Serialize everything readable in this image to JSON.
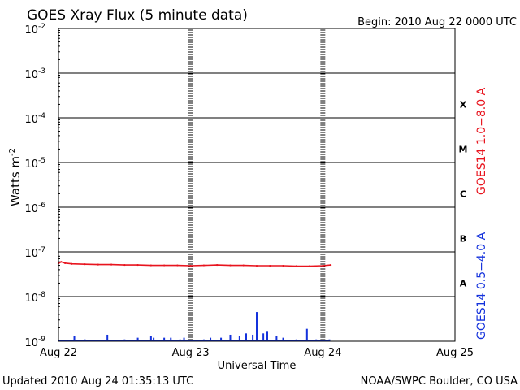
{
  "chart_data": {
    "type": "line",
    "title": "GOES Xray Flux (5 minute data)",
    "begin_label": "Begin:  2010 Aug 22 0000 UTC",
    "xlabel": "Universal Time",
    "ylabel": "Watts m",
    "ylabel_superscript": "-2",
    "y_scale": "log",
    "ylim": [
      1e-09,
      0.01
    ],
    "y_ticks": [
      {
        "base": "10",
        "exp": "-2",
        "value": 0.01
      },
      {
        "base": "10",
        "exp": "-3",
        "value": 0.001
      },
      {
        "base": "10",
        "exp": "-4",
        "value": 0.0001
      },
      {
        "base": "10",
        "exp": "-5",
        "value": 1e-05
      },
      {
        "base": "10",
        "exp": "-6",
        "value": 1e-06
      },
      {
        "base": "10",
        "exp": "-7",
        "value": 1e-07
      },
      {
        "base": "10",
        "exp": "-8",
        "value": 1e-08
      },
      {
        "base": "10",
        "exp": "-9",
        "value": 1e-09
      }
    ],
    "x_ticks": [
      {
        "label": "Aug 22",
        "day": 0
      },
      {
        "label": "Aug 23",
        "day": 1
      },
      {
        "label": "Aug 24",
        "day": 2
      },
      {
        "label": "Aug 25",
        "day": 3
      }
    ],
    "xlim_days": [
      0,
      3
    ],
    "flare_classes": [
      {
        "label": "X",
        "value": 0.0002
      },
      {
        "label": "M",
        "value": 2e-05
      },
      {
        "label": "C",
        "value": 2e-06
      },
      {
        "label": "B",
        "value": 2e-07
      },
      {
        "label": "A",
        "value": 2e-08
      }
    ],
    "grid": true,
    "series": [
      {
        "name": "GOES14 1.0−8.0 A",
        "color": "#e8141e",
        "x_days": [
          0.0,
          0.02,
          0.05,
          0.1,
          0.2,
          0.3,
          0.4,
          0.5,
          0.6,
          0.7,
          0.8,
          0.9,
          1.0,
          1.1,
          1.2,
          1.3,
          1.4,
          1.5,
          1.6,
          1.7,
          1.8,
          1.9,
          2.0,
          2.06
        ],
        "values": [
          5.5e-08,
          6e-08,
          5.6e-08,
          5.4e-08,
          5.3e-08,
          5.2e-08,
          5.2e-08,
          5.1e-08,
          5.1e-08,
          5e-08,
          5e-08,
          5e-08,
          4.9e-08,
          5e-08,
          5.1e-08,
          5e-08,
          5e-08,
          4.9e-08,
          4.9e-08,
          4.9e-08,
          4.8e-08,
          4.8e-08,
          4.9e-08,
          5.1e-08
        ]
      },
      {
        "name": "GOES14 0.5−4.0 A",
        "color": "#1432dc",
        "x_days": [
          0.0,
          0.12,
          0.2,
          0.37,
          0.5,
          0.6,
          0.7,
          0.72,
          0.8,
          0.85,
          0.92,
          0.95,
          1.0,
          1.1,
          1.15,
          1.23,
          1.3,
          1.37,
          1.42,
          1.47,
          1.5,
          1.55,
          1.58,
          1.65,
          1.7,
          1.8,
          1.88,
          1.95,
          2.0,
          2.05
        ],
        "values": [
          1e-09,
          1.3e-09,
          1.1e-09,
          1.4e-09,
          1.1e-09,
          1.2e-09,
          1.3e-09,
          1.2e-09,
          1.2e-09,
          1.2e-09,
          1.1e-09,
          1.2e-09,
          1e-09,
          1.1e-09,
          1.2e-09,
          1.2e-09,
          1.4e-09,
          1.3e-09,
          1.5e-09,
          1.4e-09,
          4.5e-09,
          1.5e-09,
          1.7e-09,
          1.3e-09,
          1.2e-09,
          1.1e-09,
          1.9e-09,
          1.1e-09,
          1e-09,
          1.1e-09
        ]
      }
    ]
  },
  "footer": {
    "updated": "Updated 2010 Aug 24 01:35:13 UTC",
    "credit": "NOAA/SWPC Boulder, CO USA"
  }
}
